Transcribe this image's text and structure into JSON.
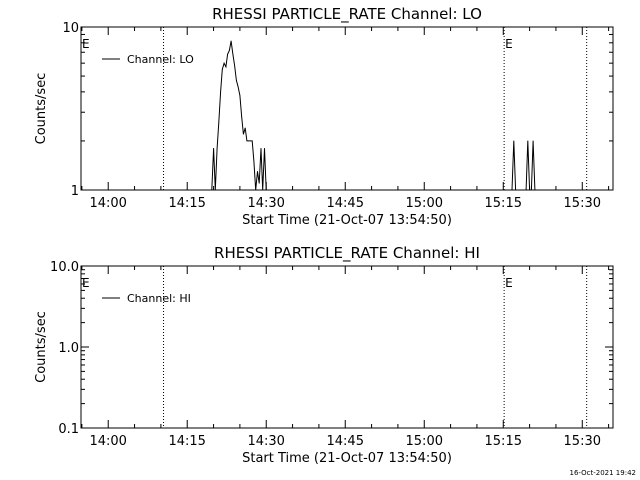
{
  "timestamp": "16-Oct-2021 19:42",
  "chart_data": [
    {
      "type": "line",
      "title": "RHESSI PARTICLE_RATE Channel: LO",
      "xlabel": "Start Time (21-Oct-07 13:54:50)",
      "ylabel": "Counts/sec",
      "yscale": "log",
      "ylim": [
        1,
        10
      ],
      "yticks": [
        1,
        10
      ],
      "ytick_labels": [
        "1",
        "10"
      ],
      "xlim": [
        "13:54:50",
        "15:35:50"
      ],
      "xticks": [
        "14:00",
        "14:15",
        "14:30",
        "14:45",
        "15:00",
        "15:15",
        "15:30"
      ],
      "grid": false,
      "legend": {
        "position": "top-left",
        "entries": [
          "Channel: LO"
        ]
      },
      "vlines": [
        {
          "time": "14:10:30",
          "label": ""
        },
        {
          "time": "15:15:10",
          "label": "E"
        },
        {
          "time": "15:30:50",
          "label": ""
        }
      ],
      "edge_labels": [
        {
          "time": "13:54:50",
          "label": "E"
        }
      ],
      "series": [
        {
          "name": "Channel: LO",
          "x": [
            "14:19:40",
            "14:20:00",
            "14:20:20",
            "14:20:40",
            "14:21:00",
            "14:21:20",
            "14:21:40",
            "14:22:00",
            "14:22:20",
            "14:22:40",
            "14:23:00",
            "14:23:20",
            "14:23:40",
            "14:24:00",
            "14:24:20",
            "14:24:40",
            "14:25:00",
            "14:25:20",
            "14:25:40",
            "14:26:00",
            "14:26:20",
            "14:26:40",
            "14:27:00",
            "14:27:20",
            "14:27:40",
            "14:28:00",
            "14:28:20",
            "14:28:40",
            "14:29:00",
            "14:29:20",
            "14:29:40",
            "14:30:00",
            "14:30:20",
            "14:30:40",
            "14:31:00",
            "15:16:40",
            "15:17:00",
            "15:17:20",
            "15:19:20",
            "15:19:40",
            "15:20:00",
            "15:20:20",
            "15:20:40",
            "15:21:00",
            "15:21:20"
          ],
          "values": [
            1,
            1.8,
            1,
            1.8,
            2.6,
            4,
            5.5,
            6,
            5.7,
            6.8,
            7.2,
            8.2,
            6.8,
            5.8,
            4.7,
            4.3,
            3.8,
            2.8,
            2.2,
            2.4,
            2,
            2,
            2,
            2,
            1.5,
            1,
            1.3,
            1.1,
            1.8,
            1,
            1.8,
            1,
            1,
            1,
            1,
            1,
            2,
            1,
            1,
            2,
            1,
            1,
            2,
            1,
            1
          ]
        }
      ]
    },
    {
      "type": "line",
      "title": "RHESSI PARTICLE_RATE Channel: HI",
      "xlabel": "Start Time (21-Oct-07 13:54:50)",
      "ylabel": "Counts/sec",
      "yscale": "log",
      "ylim": [
        0.1,
        10
      ],
      "yticks": [
        0.1,
        1,
        10
      ],
      "ytick_labels": [
        "0.1",
        "1.0",
        "10.0"
      ],
      "xlim": [
        "13:54:50",
        "15:35:50"
      ],
      "xticks": [
        "14:00",
        "14:15",
        "14:30",
        "14:45",
        "15:00",
        "15:15",
        "15:30"
      ],
      "grid": false,
      "legend": {
        "position": "top-left",
        "entries": [
          "Channel: HI"
        ]
      },
      "vlines": [
        {
          "time": "14:10:30",
          "label": ""
        },
        {
          "time": "15:15:10",
          "label": "E"
        },
        {
          "time": "15:30:50",
          "label": ""
        }
      ],
      "edge_labels": [
        {
          "time": "13:54:50",
          "label": "E"
        }
      ],
      "series": [
        {
          "name": "Channel: HI",
          "x": [],
          "values": []
        }
      ]
    }
  ]
}
